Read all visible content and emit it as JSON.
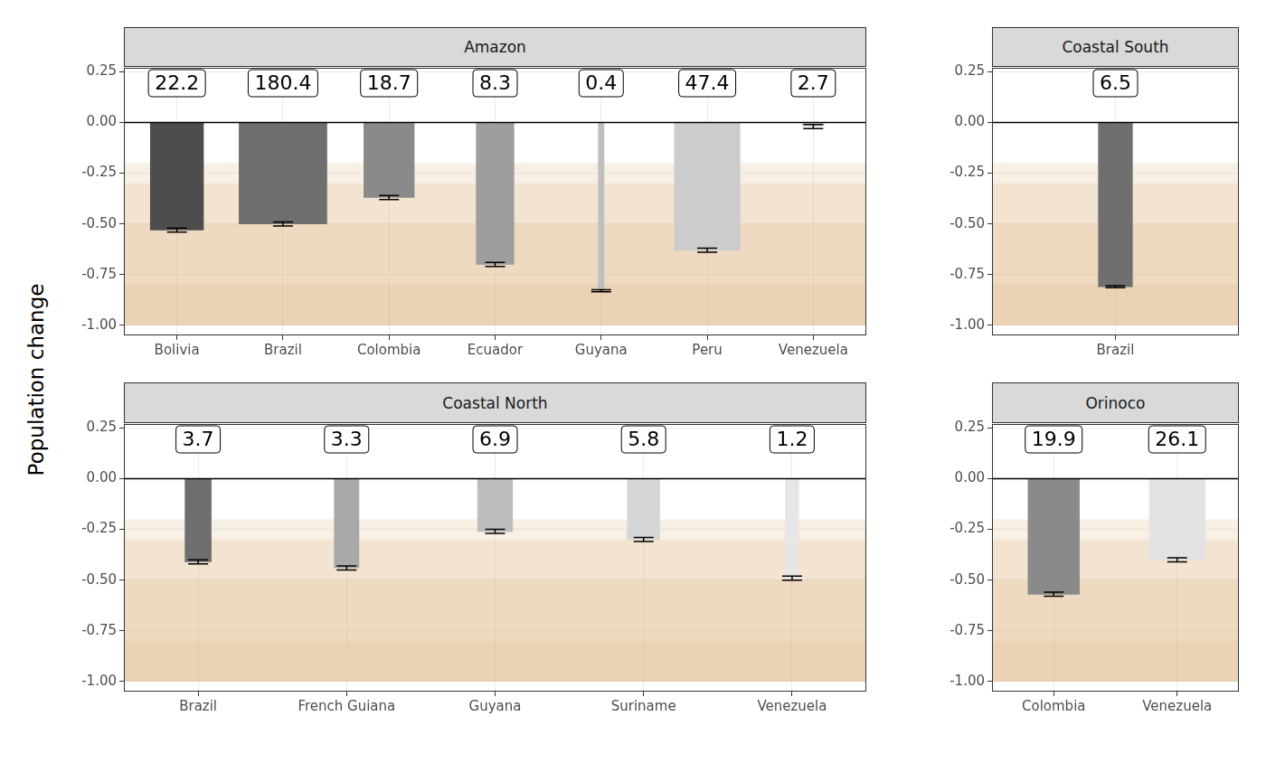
{
  "ylabel": "Population change",
  "chart_data": [
    {
      "type": "bar",
      "title": "Amazon",
      "categories": [
        "Bolivia",
        "Brazil",
        "Colombia",
        "Ecuador",
        "Guyana",
        "Peru",
        "Venezuela"
      ],
      "values": [
        -0.53,
        -0.5,
        -0.37,
        -0.7,
        -0.83,
        -0.63,
        -0.02
      ],
      "error_low": [
        -0.54,
        -0.51,
        -0.38,
        -0.71,
        -0.835,
        -0.64,
        -0.03
      ],
      "error_high": [
        -0.52,
        -0.49,
        -0.36,
        -0.69,
        -0.825,
        -0.62,
        -0.01
      ],
      "annotations": [
        22.2,
        180.4,
        18.7,
        8.3,
        0.4,
        47.4,
        2.7
      ],
      "colors": [
        "#4d4d4d",
        "#6f6f6f",
        "#8a8a8a",
        "#9e9e9e",
        "#bfbfbf",
        "#cccccc",
        "#e3e3e3"
      ],
      "bands": [
        {
          "from": -0.2,
          "to": -1.0
        },
        {
          "from": -0.3,
          "to": -1.0
        },
        {
          "from": -0.5,
          "to": -1.0
        },
        {
          "from": -0.8,
          "to": -1.0
        }
      ],
      "hline": 0,
      "ylim": [
        -1.05,
        0.27
      ],
      "yticks": [
        {
          "value": -1,
          "label": "-1.00"
        },
        -0.75,
        {
          "value": -0.5,
          "label": "-0.50"
        },
        -0.25,
        {
          "value": 0,
          "label": "0.00"
        },
        0.25
      ],
      "grid": true
    },
    {
      "type": "bar",
      "title": "Coastal South",
      "categories": [
        "Brazil"
      ],
      "values": [
        -0.81
      ],
      "error_low": [
        -0.815
      ],
      "error_high": [
        -0.805
      ],
      "annotations": [
        6.5
      ],
      "colors": [
        "#6f6f6f"
      ],
      "bands": [
        {
          "from": -0.2,
          "to": -1.0
        },
        {
          "from": -0.3,
          "to": -1.0
        },
        {
          "from": -0.5,
          "to": -1.0
        },
        {
          "from": -0.8,
          "to": -1.0
        }
      ],
      "hline": 0,
      "ylim": [
        -1.05,
        0.27
      ],
      "yticks": [
        {
          "value": -1,
          "label": "-1.00"
        },
        -0.75,
        {
          "value": -0.5,
          "label": "-0.50"
        },
        -0.25,
        {
          "value": 0,
          "label": "0.00"
        },
        0.25
      ],
      "grid": true
    },
    {
      "type": "bar",
      "title": "Coastal North",
      "categories": [
        "Brazil",
        "French Guiana",
        "Guyana",
        "Suriname",
        "Venezuela"
      ],
      "values": [
        -0.41,
        -0.44,
        -0.26,
        -0.3,
        -0.49
      ],
      "error_low": [
        -0.42,
        -0.45,
        -0.27,
        -0.31,
        -0.5
      ],
      "error_high": [
        -0.4,
        -0.43,
        -0.25,
        -0.29,
        -0.48
      ],
      "annotations": [
        3.7,
        3.3,
        6.9,
        5.8,
        1.2
      ],
      "colors": [
        "#6f6f6f",
        "#a9a9a9",
        "#bdbdbd",
        "#d6d6d6",
        "#e6e6e6"
      ],
      "bands": [
        {
          "from": -0.2,
          "to": -1.0
        },
        {
          "from": -0.3,
          "to": -1.0
        },
        {
          "from": -0.5,
          "to": -1.0
        },
        {
          "from": -0.8,
          "to": -1.0
        }
      ],
      "hline": 0,
      "ylim": [
        -1.05,
        0.27
      ],
      "yticks": [
        {
          "value": -1,
          "label": "-1.00"
        },
        -0.75,
        {
          "value": -0.5,
          "label": "-0.50"
        },
        -0.25,
        {
          "value": 0,
          "label": "0.00"
        },
        0.25
      ],
      "grid": true
    },
    {
      "type": "bar",
      "title": "Orinoco",
      "categories": [
        "Colombia",
        "Venezuela"
      ],
      "values": [
        -0.57,
        -0.4
      ],
      "error_low": [
        -0.58,
        -0.41
      ],
      "error_high": [
        -0.56,
        -0.39
      ],
      "annotations": [
        19.9,
        26.1
      ],
      "colors": [
        "#8a8a8a",
        "#e3e3e3"
      ],
      "bands": [
        {
          "from": -0.2,
          "to": -1.0
        },
        {
          "from": -0.3,
          "to": -1.0
        },
        {
          "from": -0.5,
          "to": -1.0
        },
        {
          "from": -0.8,
          "to": -1.0
        }
      ],
      "hline": 0,
      "ylim": [
        -1.05,
        0.27
      ],
      "yticks": [
        {
          "value": -1,
          "label": "-1.00"
        },
        -0.75,
        {
          "value": -0.5,
          "label": "-0.50"
        },
        -0.25,
        {
          "value": 0,
          "label": "0.00"
        },
        0.25
      ],
      "grid": true
    }
  ]
}
